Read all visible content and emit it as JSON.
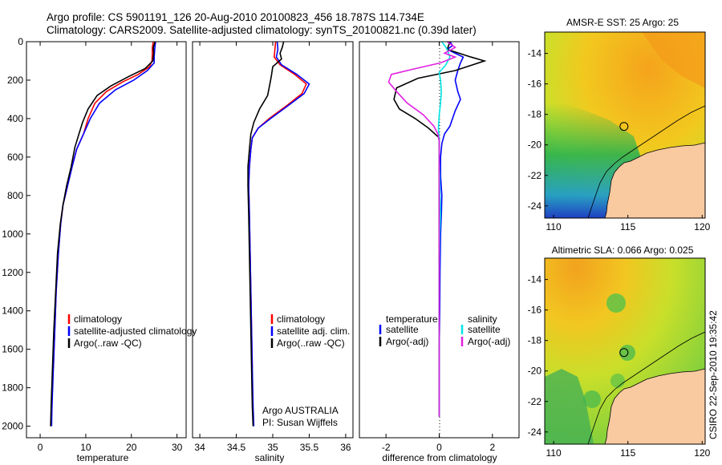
{
  "header": {
    "line1": "Argo profile: CS 5901191_126 20-Aug-2010 20100823_456 18.787S 114.734E",
    "line2": "Climatology: CARS2009. Satellite-adjusted climatology: synTS_20100821.nc (0.39d later)"
  },
  "footer": {
    "credit": "CSIRO 22-Sep-2010 19:35:42"
  },
  "colors": {
    "climatology": "#ff0000",
    "satellite": "#0000ff",
    "argo": "#000000",
    "salinity": "#00e5e5",
    "salinity_adj": "#e020e0"
  },
  "chart_data": [
    {
      "type": "line",
      "xlabel": "temperature",
      "ylabel": "",
      "xlim": [
        -3,
        32
      ],
      "ylim": [
        2060,
        0
      ],
      "xticks": [
        0,
        10,
        20,
        30
      ],
      "yticks": [
        0,
        200,
        400,
        600,
        800,
        1000,
        1200,
        1400,
        1600,
        1800,
        2000
      ],
      "legend": [
        "climatology",
        "satellite-adjusted climatology",
        "Argo(..raw -QC)"
      ],
      "notes": [],
      "series": [
        {
          "name": "climatology",
          "color": "#ff0000",
          "points": [
            [
              24.8,
              0
            ],
            [
              24.6,
              30
            ],
            [
              24.6,
              60
            ],
            [
              24.5,
              100
            ],
            [
              24,
              130
            ],
            [
              21.5,
              170
            ],
            [
              18,
              210
            ],
            [
              14.5,
              260
            ],
            [
              12,
              320
            ],
            [
              10.5,
              400
            ],
            [
              9.5,
              480
            ],
            [
              8,
              560
            ],
            [
              7,
              650
            ],
            [
              6,
              750
            ],
            [
              5,
              850
            ],
            [
              4.5,
              950
            ],
            [
              4,
              1100
            ],
            [
              3.5,
              1300
            ],
            [
              3.2,
              1500
            ],
            [
              2.9,
              1700
            ]
          ]
        },
        {
          "name": "satellite-adjusted climatology",
          "color": "#0000ff",
          "points": [
            [
              25.3,
              0
            ],
            [
              25.1,
              40
            ],
            [
              25,
              80
            ],
            [
              25,
              110
            ],
            [
              23.5,
              150
            ],
            [
              20.5,
              200
            ],
            [
              16.5,
              250
            ],
            [
              13,
              320
            ],
            [
              11,
              400
            ],
            [
              9.5,
              480
            ],
            [
              8,
              560
            ],
            [
              7,
              650
            ],
            [
              6,
              750
            ],
            [
              5,
              850
            ],
            [
              4.5,
              950
            ],
            [
              4,
              1100
            ],
            [
              3.5,
              1300
            ],
            [
              3.2,
              1500
            ],
            [
              2.9,
              1700
            ],
            [
              2.6,
              1900
            ],
            [
              2.5,
              2000
            ]
          ]
        },
        {
          "name": "Argo(..raw -QC)",
          "color": "#000000",
          "points": [
            [
              25.2,
              0
            ],
            [
              24.8,
              30
            ],
            [
              24.9,
              60
            ],
            [
              24.7,
              100
            ],
            [
              23,
              140
            ],
            [
              19.5,
              180
            ],
            [
              15.5,
              230
            ],
            [
              12.5,
              280
            ],
            [
              10.5,
              350
            ],
            [
              9.3,
              420
            ],
            [
              8.5,
              480
            ],
            [
              7.6,
              550
            ],
            [
              6.8,
              650
            ],
            [
              5.8,
              750
            ],
            [
              5,
              850
            ],
            [
              4.4,
              950
            ],
            [
              3.8,
              1100
            ],
            [
              3.4,
              1300
            ],
            [
              3,
              1500
            ],
            [
              2.7,
              1700
            ],
            [
              2.4,
              1900
            ],
            [
              2.3,
              2000
            ]
          ]
        }
      ]
    },
    {
      "type": "line",
      "xlabel": "salinity",
      "ylabel": "",
      "xlim": [
        33.9,
        36.1
      ],
      "ylim": [
        2060,
        0
      ],
      "xticks": [
        34,
        34.5,
        35,
        35.5,
        36
      ],
      "yticks": [],
      "legend": [
        "climatology",
        "satellite adj. clim.",
        "Argo(..raw -QC)"
      ],
      "notes": [
        "Argo AUSTRALIA",
        "PI: Susan Wijffels"
      ],
      "series": [
        {
          "name": "climatology",
          "color": "#ff0000",
          "points": [
            [
              35.04,
              0
            ],
            [
              35.03,
              40
            ],
            [
              35.02,
              80
            ],
            [
              35.1,
              120
            ],
            [
              35.3,
              170
            ],
            [
              35.46,
              220
            ],
            [
              35.4,
              270
            ],
            [
              35.2,
              330
            ],
            [
              34.95,
              400
            ],
            [
              34.8,
              450
            ],
            [
              34.72,
              500
            ],
            [
              34.7,
              560
            ],
            [
              34.68,
              650
            ],
            [
              34.67,
              750
            ],
            [
              34.68,
              900
            ],
            [
              34.69,
              1100
            ],
            [
              34.7,
              1300
            ],
            [
              34.71,
              1500
            ],
            [
              34.72,
              1700
            ]
          ]
        },
        {
          "name": "satellite adj. clim.",
          "color": "#0000ff",
          "points": [
            [
              35.06,
              0
            ],
            [
              35.07,
              40
            ],
            [
              35.05,
              80
            ],
            [
              35.12,
              120
            ],
            [
              35.33,
              170
            ],
            [
              35.5,
              220
            ],
            [
              35.43,
              270
            ],
            [
              35.22,
              330
            ],
            [
              34.97,
              400
            ],
            [
              34.8,
              450
            ],
            [
              34.72,
              500
            ],
            [
              34.7,
              560
            ],
            [
              34.68,
              650
            ],
            [
              34.67,
              750
            ],
            [
              34.68,
              900
            ],
            [
              34.69,
              1100
            ],
            [
              34.7,
              1300
            ],
            [
              34.71,
              1500
            ],
            [
              34.72,
              1700
            ],
            [
              34.73,
              1900
            ],
            [
              34.74,
              2000
            ]
          ]
        },
        {
          "name": "Argo(..raw -QC)",
          "color": "#000000",
          "points": [
            [
              35.15,
              0
            ],
            [
              35.13,
              30
            ],
            [
              35.1,
              60
            ],
            [
              35.12,
              90
            ],
            [
              35.0,
              130
            ],
            [
              34.98,
              180
            ],
            [
              34.96,
              220
            ],
            [
              34.93,
              280
            ],
            [
              34.82,
              350
            ],
            [
              34.74,
              420
            ],
            [
              34.7,
              480
            ],
            [
              34.68,
              560
            ],
            [
              34.66,
              650
            ],
            [
              34.66,
              750
            ],
            [
              34.67,
              900
            ],
            [
              34.68,
              1100
            ],
            [
              34.69,
              1300
            ],
            [
              34.7,
              1500
            ],
            [
              34.71,
              1700
            ],
            [
              34.72,
              1900
            ],
            [
              34.73,
              2000
            ]
          ]
        }
      ]
    },
    {
      "type": "line",
      "xlabel": "difference from climatology",
      "ylabel": "",
      "xlim": [
        -3,
        3
      ],
      "ylim": [
        2060,
        0
      ],
      "xticks": [
        -2,
        0,
        2
      ],
      "yticks": [],
      "legend": [
        "temperature",
        "satellite",
        "Argo(-adj)",
        "salinity",
        "satellite",
        "Argo(-adj)"
      ],
      "notes": [],
      "series": [
        {
          "name": "satellite",
          "color": "#0000ff",
          "points": [
            [
              0.4,
              0
            ],
            [
              0.5,
              20
            ],
            [
              0.3,
              40
            ],
            [
              0.6,
              60
            ],
            [
              0.9,
              80
            ],
            [
              0.8,
              110
            ],
            [
              0.7,
              150
            ],
            [
              0.6,
              200
            ],
            [
              0.7,
              260
            ],
            [
              0.8,
              300
            ],
            [
              0.6,
              360
            ],
            [
              0.5,
              400
            ],
            [
              0.4,
              440
            ],
            [
              0.2,
              480
            ],
            [
              0.1,
              530
            ],
            [
              0.05,
              600
            ],
            [
              0.05,
              700
            ],
            [
              0.1,
              800
            ],
            [
              0.08,
              900
            ],
            [
              0.05,
              1000
            ],
            [
              0.03,
              1200
            ],
            [
              0.02,
              1400
            ],
            [
              0,
              1600
            ],
            [
              0,
              1700
            ],
            [
              0,
              1800
            ],
            [
              0,
              1900
            ],
            [
              0,
              1950
            ]
          ]
        },
        {
          "name": "Argo(-adj)",
          "color": "#000000",
          "points": [
            [
              0.4,
              0
            ],
            [
              0.3,
              40
            ],
            [
              1.2,
              80
            ],
            [
              1.7,
              100
            ],
            [
              0.6,
              150
            ],
            [
              -0.8,
              190
            ],
            [
              -1.6,
              240
            ],
            [
              -1.7,
              300
            ],
            [
              -1.5,
              350
            ],
            [
              -0.9,
              400
            ],
            [
              -0.4,
              450
            ],
            [
              0,
              500
            ],
            [
              0,
              550
            ],
            [
              0,
              600
            ],
            [
              0,
              800
            ],
            [
              0,
              1200
            ],
            [
              0,
              1600
            ],
            [
              0,
              1950
            ]
          ]
        },
        {
          "name": "salinity satellite",
          "color": "#00e5e5",
          "points": [
            [
              0.1,
              0
            ],
            [
              0.3,
              40
            ],
            [
              0.4,
              80
            ],
            [
              0.25,
              120
            ],
            [
              0,
              160
            ],
            [
              0.05,
              200
            ],
            [
              0.08,
              260
            ],
            [
              0.05,
              320
            ],
            [
              0,
              380
            ],
            [
              -0.03,
              450
            ],
            [
              0,
              520
            ],
            [
              0,
              600
            ],
            [
              0.02,
              700
            ],
            [
              0.03,
              800
            ],
            [
              0.05,
              900
            ],
            [
              0.02,
              1000
            ],
            [
              0,
              1200
            ],
            [
              0,
              1600
            ],
            [
              0,
              1950
            ]
          ]
        },
        {
          "name": "salinity Argo(-adj)",
          "color": "#e020e0",
          "points": [
            [
              0.3,
              0
            ],
            [
              0.6,
              30
            ],
            [
              0.2,
              60
            ],
            [
              0.6,
              80
            ],
            [
              0.05,
              110
            ],
            [
              -0.9,
              140
            ],
            [
              -1.8,
              170
            ],
            [
              -1.9,
              210
            ],
            [
              -1.6,
              260
            ],
            [
              -1.2,
              320
            ],
            [
              -0.6,
              380
            ],
            [
              -0.2,
              440
            ],
            [
              -0.05,
              480
            ],
            [
              0,
              520
            ],
            [
              0,
              600
            ],
            [
              0,
              800
            ],
            [
              0,
              1200
            ],
            [
              0,
              1600
            ],
            [
              0,
              1950
            ]
          ]
        }
      ]
    },
    {
      "type": "heatmap",
      "title": "AMSR-E SST: 25 Argo: 25",
      "xlim": [
        109.4,
        120.2
      ],
      "ylim": [
        -24.8,
        -12.6
      ],
      "xticks": [
        110,
        115,
        120
      ],
      "yticks": [
        -14,
        -16,
        -18,
        -20,
        -22,
        -24
      ],
      "marker": [
        114.734,
        -18.787
      ]
    },
    {
      "type": "heatmap",
      "title": "Altimetric SLA: 0.066 Argo: 0.025",
      "xlim": [
        109.4,
        120.2
      ],
      "ylim": [
        -24.8,
        -12.6
      ],
      "xticks": [
        110,
        115,
        120
      ],
      "yticks": [
        -14,
        -16,
        -18,
        -20,
        -22,
        -24
      ],
      "marker": [
        114.734,
        -18.787
      ]
    }
  ]
}
